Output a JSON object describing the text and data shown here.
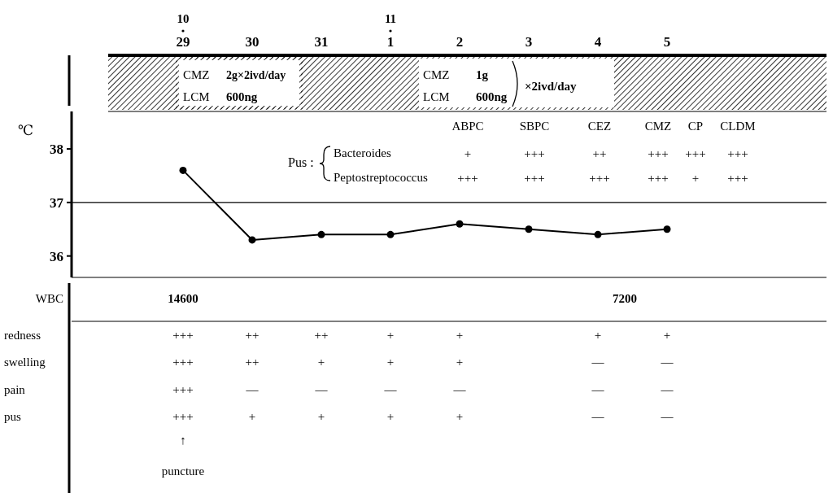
{
  "chart_data": {
    "type": "line",
    "ylabel": "℃",
    "categories": [
      "29",
      "30",
      "31",
      "1",
      "2",
      "3",
      "4",
      "5"
    ],
    "series": [
      {
        "color": "#000000",
        "values": [
          37.6,
          36.3,
          36.4,
          36.4,
          36.6,
          36.5,
          36.4,
          36.5
        ]
      }
    ],
    "ylim": [
      35.6,
      38.7
    ],
    "yticks": [
      36,
      37,
      38
    ],
    "ref_lines": [
      {
        "axis": "y",
        "value": 37,
        "color": "#000000"
      }
    ],
    "grid": false,
    "legend": false,
    "marker": "circle",
    "line_style": "solid",
    "annotations": [
      "10",
      "11",
      "CMZ",
      "2g×2ivd/day",
      "LCM",
      "600ng",
      "CMZ",
      "1g",
      "LCM",
      "600ng",
      "×2ivd/day",
      "Pus :",
      "Bacteroides",
      "Peptostreptococcus",
      "ABPC",
      "SBPC",
      "CEZ",
      "CMZ",
      "CP",
      "CLDM",
      "+",
      "+++",
      "++",
      "+++",
      "+++",
      "+++",
      "+++",
      "+++",
      "+++",
      "+++",
      "+",
      "+++",
      "WBC",
      "14600",
      "7200",
      "redness",
      "swelling",
      "pain",
      "pus",
      "+++",
      "++",
      "++",
      "+",
      "+",
      "+",
      "+",
      "+++",
      "++",
      "+",
      "+",
      "+",
      "—",
      "—",
      "+++",
      "—",
      "—",
      "—",
      "—",
      "—",
      "—",
      "+++",
      "+",
      "+",
      "+",
      "+",
      "—",
      "—",
      "↑",
      "puncture"
    ]
  }
}
